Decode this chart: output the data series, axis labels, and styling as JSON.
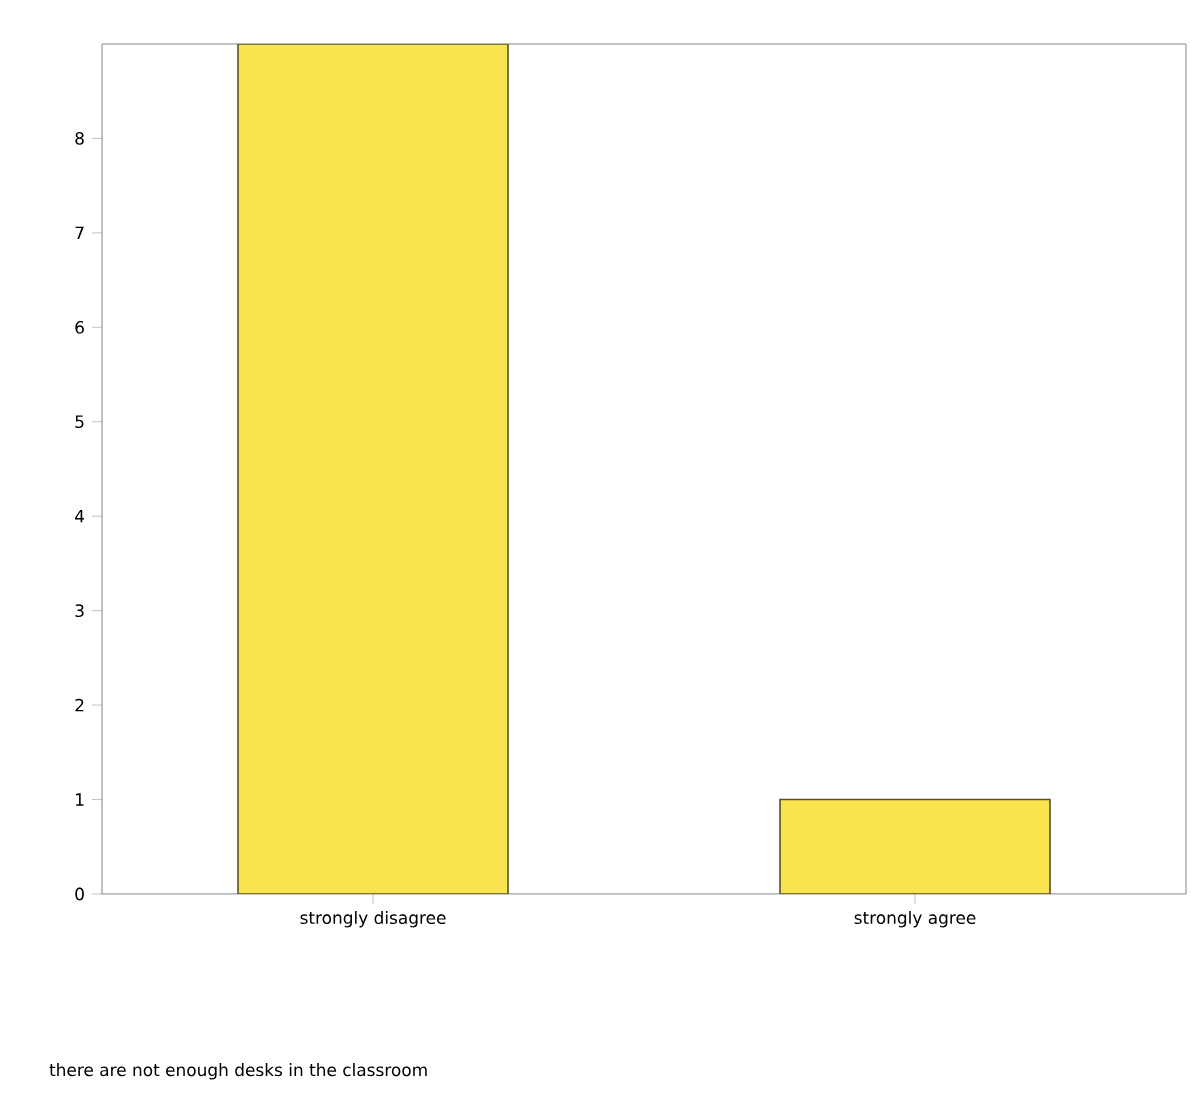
{
  "chart_data": {
    "type": "bar",
    "annotations": [
      "there are not enough desks in the classroom"
    ],
    "categories": [
      "strongly disagree",
      "strongly agree"
    ],
    "values": [
      9,
      1
    ],
    "color": "#f8e44e",
    "ylim": [
      0,
      9
    ],
    "yticks": [
      0,
      1,
      2,
      3,
      4,
      5,
      6,
      7,
      8
    ],
    "grid": false
  }
}
